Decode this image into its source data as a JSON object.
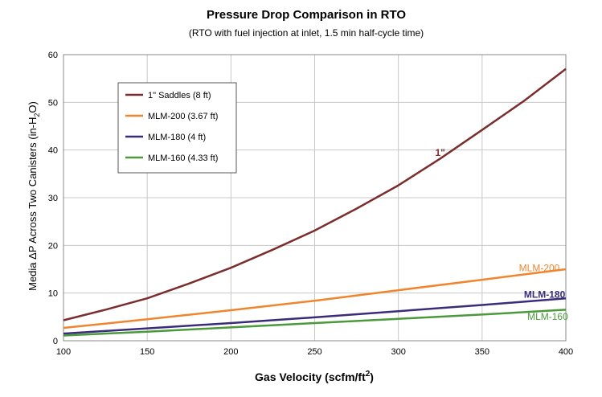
{
  "chart_data": {
    "type": "line",
    "title": "Pressure Drop Comparison in RTO",
    "subtitle": "(RTO with fuel injection at inlet, 1.5 min half-cycle time)",
    "xlabel": "Gas Velocity (scfm/ft",
    "xlabel_sup": "2",
    "xlabel_end": ")",
    "ylabel": "Media ΔP Across Two Canisters (in-H",
    "ylabel_sub": "2",
    "ylabel_end": "O)",
    "xlim": [
      100,
      400
    ],
    "ylim": [
      0,
      60
    ],
    "x_ticks": [
      "100",
      "150",
      "200",
      "250",
      "300",
      "350",
      "400"
    ],
    "y_ticks": [
      "0",
      "10",
      "20",
      "30",
      "40",
      "50",
      "60"
    ],
    "grid": true,
    "legend_position": "top-left",
    "series": [
      {
        "name": "1\" Saddles (8 ft)",
        "color": "#7b2e2e",
        "x": [
          100,
          125,
          150,
          175,
          200,
          225,
          250,
          275,
          300,
          325,
          350,
          375,
          400
        ],
        "y": [
          4.3,
          6.5,
          8.9,
          12.0,
          15.3,
          19.1,
          23.1,
          27.7,
          32.6,
          38.2,
          44.2,
          50.3,
          57.0
        ]
      },
      {
        "name": "MLM-200 (3.67 ft)",
        "color": "#f0852e",
        "x": [
          100,
          150,
          200,
          250,
          300,
          350,
          400
        ],
        "y": [
          2.7,
          4.5,
          6.4,
          8.4,
          10.6,
          12.8,
          15.0
        ]
      },
      {
        "name": "MLM-180 (4 ft)",
        "color": "#3b2c7a",
        "x": [
          100,
          150,
          200,
          250,
          300,
          350,
          400
        ],
        "y": [
          1.5,
          2.6,
          3.7,
          4.9,
          6.2,
          7.5,
          8.9
        ]
      },
      {
        "name": "MLM-160 (4.33 ft)",
        "color": "#4a9a3c",
        "x": [
          100,
          150,
          200,
          250,
          300,
          350,
          400
        ],
        "y": [
          1.1,
          1.9,
          2.8,
          3.7,
          4.6,
          5.5,
          6.5
        ]
      }
    ],
    "annotations": [
      {
        "text": "1\"",
        "x": 322,
        "y": 38.8,
        "color": "#7b2e2e",
        "bold": true
      },
      {
        "text": "MLM-200",
        "x": 372,
        "y": 14.6,
        "color": "#f0852e",
        "bold": false
      },
      {
        "text": "MLM-180",
        "x": 375,
        "y": 9.0,
        "color": "#3b2c7a",
        "bold": true
      },
      {
        "text": "MLM-160",
        "x": 377,
        "y": 4.4,
        "color": "#4a9a3c",
        "bold": false
      }
    ]
  }
}
